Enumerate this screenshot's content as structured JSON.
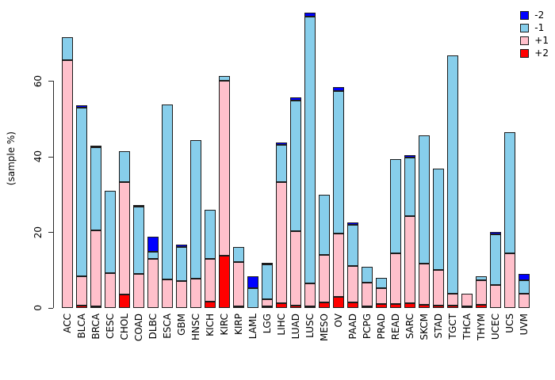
{
  "figure": {
    "background": "#ffffff"
  },
  "y_axis": {
    "label": "(sample %)",
    "ticks": [
      0,
      20,
      40,
      60
    ]
  },
  "legend": {
    "position": "top-right",
    "items": [
      {
        "label": "-2",
        "color": "#0000FF"
      },
      {
        "label": "-1",
        "color": "#87CEEB"
      },
      {
        "label": "+1",
        "color": "#FFC0CB"
      },
      {
        "label": "+2",
        "color": "#FF0000"
      }
    ]
  },
  "chart_data": {
    "type": "bar",
    "stacked": true,
    "title": "",
    "xlabel": "",
    "ylabel": "(sample %)",
    "ylim": [
      0,
      79
    ],
    "grid": false,
    "legend_position": "top-right",
    "categories": [
      "ACC",
      "BLCA",
      "BRCA",
      "CESC",
      "CHOL",
      "COAD",
      "DLBC",
      "ESCA",
      "GBM",
      "HNSC",
      "KICH",
      "KIRC",
      "KIRP",
      "LAML",
      "LGG",
      "LIHC",
      "LUAD",
      "LUSC",
      "MESO",
      "OV",
      "PAAD",
      "PCPG",
      "PRAD",
      "READ",
      "SARC",
      "SKCM",
      "STAD",
      "TGCT",
      "THCA",
      "THYM",
      "UCEC",
      "UCS",
      "UVM"
    ],
    "stack_order_bottom_to_top": [
      "+2",
      "+1",
      "-1",
      "-2"
    ],
    "series": [
      {
        "name": "+2",
        "color": "#FF0000",
        "values": [
          0,
          0.6,
          0.5,
          0,
          3.5,
          0,
          0,
          0,
          0,
          0,
          1.6,
          13.8,
          0.4,
          0,
          0.4,
          1.3,
          0.7,
          0.4,
          1.5,
          3.0,
          1.5,
          0.4,
          1.0,
          1.0,
          1.2,
          0.8,
          0.7,
          0.6,
          0.5,
          0.8,
          0,
          0,
          0
        ]
      },
      {
        "name": "+1",
        "color": "#FFC0CB",
        "values": [
          65.5,
          7.8,
          20.0,
          9.2,
          29.8,
          9.0,
          13.0,
          7.5,
          7.2,
          7.7,
          11.4,
          46.3,
          11.7,
          0,
          1.8,
          31.9,
          19.6,
          6.0,
          12.6,
          16.6,
          9.5,
          6.2,
          4.2,
          13.4,
          23.1,
          11.0,
          9.4,
          3.2,
          3.3,
          6.5,
          6.1,
          14.4,
          3.8
        ]
      },
      {
        "name": "-1",
        "color": "#87CEEB",
        "values": [
          6.0,
          44.6,
          22.0,
          21.8,
          8.2,
          17.8,
          1.8,
          46.3,
          9.0,
          36.7,
          13.0,
          1.1,
          3.9,
          5.3,
          9.2,
          10.0,
          34.6,
          70.5,
          15.9,
          37.8,
          11.0,
          4.3,
          2.8,
          25.0,
          15.4,
          33.9,
          26.7,
          62.9,
          0,
          1.0,
          13.4,
          32.0,
          3.5
        ]
      },
      {
        "name": "-2",
        "color": "#0000FF",
        "values": [
          0,
          0.5,
          0.5,
          0,
          0,
          0.4,
          4.0,
          0,
          0.5,
          0,
          0,
          0,
          0,
          3.0,
          0.5,
          0.5,
          0.7,
          1.2,
          0,
          0.9,
          0.5,
          0,
          0,
          0,
          0.7,
          0,
          0,
          0,
          0,
          0,
          0.5,
          0,
          1.7
        ]
      }
    ],
    "totals": [
      71.5,
      53.5,
      43.0,
      31.0,
      41.5,
      27.2,
      18.8,
      53.8,
      16.7,
      44.4,
      26.0,
      61.2,
      16.0,
      8.3,
      11.9,
      43.7,
      55.6,
      78.1,
      30.0,
      58.3,
      22.5,
      10.9,
      8.0,
      39.4,
      40.4,
      45.7,
      36.8,
      66.7,
      3.8,
      8.3,
      20.0,
      46.4,
      9.0
    ]
  }
}
